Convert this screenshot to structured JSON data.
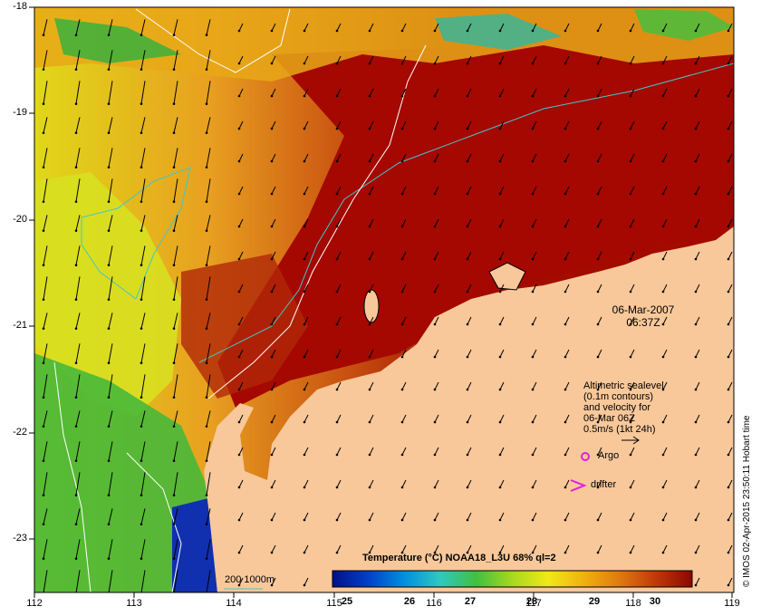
{
  "map": {
    "x_ticks": [
      "112",
      "113",
      "114",
      "115",
      "116",
      "117",
      "118",
      "119"
    ],
    "y_ticks": [
      "-18",
      "-19",
      "-20",
      "-21",
      "-22",
      "-23"
    ],
    "lon_range": [
      112,
      119
    ],
    "lat_range": [
      -23.5,
      -18
    ],
    "colors": {
      "land": "#f8c89a",
      "warm_ocean": "#a40800",
      "deep_red": "#7e1000",
      "orange": "#e28c18",
      "yellow": "#f0e010",
      "green": "#2cb030",
      "cyan": "#28b8c8",
      "blue": "#0a2aa0",
      "contour_200m": "#40c8c8",
      "sealevel_contour": "#ffffff"
    }
  },
  "annotations": {
    "date": "06-Mar-2007",
    "time": "06:37Z",
    "altimetry_lines": [
      "Altimetric sealevel",
      "(0.1m contours)",
      "and velocity for",
      "06-Mar 06Z",
      "0.5m/s (1kt 24h)"
    ],
    "argo_label": "Argo",
    "drifter_label": "drifter",
    "contour_key": "200  1000m",
    "credit": "© IMOS 02-Apr-2015 23:50:11 Hobart time"
  },
  "colorbar": {
    "title": "Temperature (°C) NOAA18_L3U 68% ql=2",
    "labels": [
      "25",
      "26",
      "27",
      "28",
      "29",
      "30"
    ],
    "stops": [
      "#00108a",
      "#0040c8",
      "#0090e0",
      "#30c8c0",
      "#40c040",
      "#a8d820",
      "#f0e818",
      "#f0b010",
      "#e07810",
      "#c03808",
      "#8a0800"
    ]
  }
}
